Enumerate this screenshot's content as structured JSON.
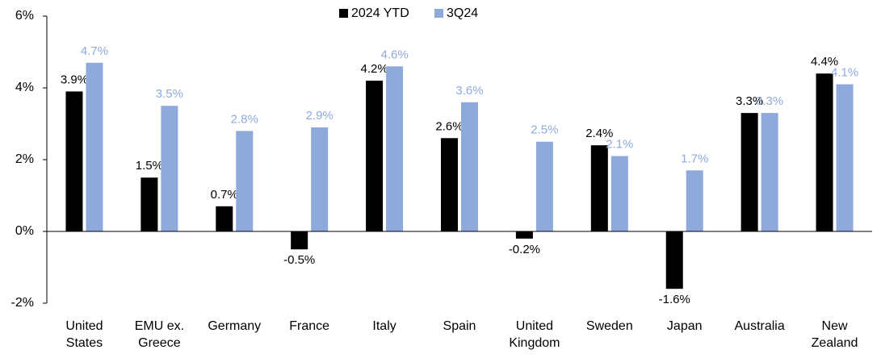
{
  "chart_data": {
    "type": "bar",
    "categories": [
      "United\nStates",
      "EMU ex.\nGreece",
      "Germany",
      "France",
      "Italy",
      "Spain",
      "United\nKingdom",
      "Sweden",
      "Japan",
      "Australia",
      "New\nZealand"
    ],
    "series": [
      {
        "name": "2024 YTD",
        "color": "#000000",
        "values": [
          3.9,
          1.5,
          0.7,
          -0.5,
          4.2,
          2.6,
          -0.2,
          2.4,
          -1.6,
          3.3,
          4.4
        ],
        "value_labels": [
          "3.9%",
          "1.5%",
          "0.7%",
          "-0.5%",
          "4.2%",
          "2.6%",
          "-0.2%",
          "2.4%",
          "-1.6%",
          "3.3%",
          "4.4%"
        ],
        "label_color": "#000000"
      },
      {
        "name": "3Q24",
        "color": "#8eaadb",
        "values": [
          4.7,
          3.5,
          2.8,
          2.9,
          4.6,
          3.6,
          2.5,
          2.1,
          1.7,
          3.3,
          4.1
        ],
        "value_labels": [
          "4.7%",
          "3.5%",
          "2.8%",
          "2.9%",
          "4.6%",
          "3.6%",
          "2.5%",
          "2.1%",
          "1.7%",
          "3.3%",
          "4.1%"
        ],
        "label_color": "#8eaadb"
      }
    ],
    "ylim": [
      -2,
      6
    ],
    "yticks": [
      {
        "value": -2,
        "label": "-2%"
      },
      {
        "value": 0,
        "label": "0%"
      },
      {
        "value": 2,
        "label": "2%"
      },
      {
        "value": 4,
        "label": "4%"
      },
      {
        "value": 6,
        "label": "6%"
      }
    ],
    "grid": false,
    "legend": "top"
  }
}
